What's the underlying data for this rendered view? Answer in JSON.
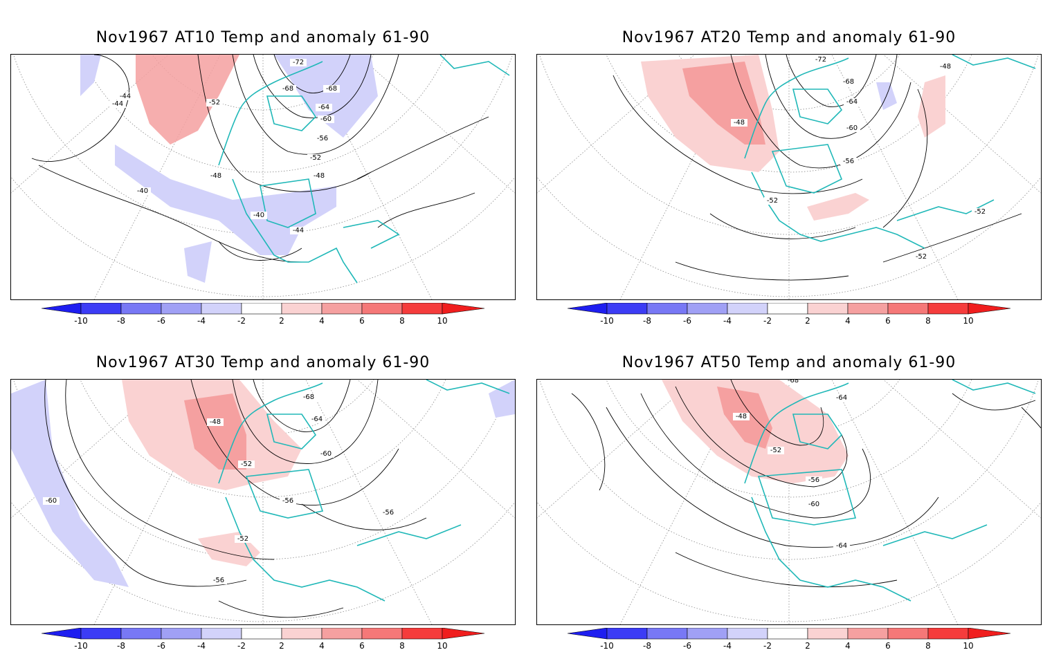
{
  "panels": [
    {
      "title": "Nov1967 AT10 Temp and anomaly 61-90",
      "contour_labels": [
        "-72",
        "-68",
        "-68",
        "-64",
        "-60",
        "-56",
        "-52",
        "-52",
        "-48",
        "-48",
        "-44",
        "-44",
        "-40",
        "-40",
        "-44"
      ]
    },
    {
      "title": "Nov1967 AT20 Temp and anomaly 61-90",
      "contour_labels": [
        "-72",
        "-68",
        "-64",
        "-60",
        "-56",
        "-52",
        "-48",
        "-48",
        "-52",
        "-52"
      ]
    },
    {
      "title": "Nov1967 AT30 Temp and anomaly 61-90",
      "contour_labels": [
        "-68",
        "-64",
        "-60",
        "-56",
        "-52",
        "-48",
        "-52",
        "-56",
        "-56",
        "-60"
      ]
    },
    {
      "title": "Nov1967 AT50 Temp and anomaly 61-90",
      "contour_labels": [
        "-68",
        "-64",
        "-48",
        "-52",
        "-56",
        "-60",
        "-64"
      ]
    }
  ],
  "colorbar": {
    "tick_labels": [
      "-10",
      "-8",
      "-6",
      "-4",
      "-2",
      "2",
      "4",
      "6",
      "8",
      "10"
    ],
    "colors": [
      "#1e1ef0",
      "#3c3cf5",
      "#7878f5",
      "#a0a0f5",
      "#d2d2fa",
      "#ffffff",
      "#fad2d2",
      "#f5a0a0",
      "#f57878",
      "#f53c3c",
      "#f01e1e"
    ]
  },
  "colors": {
    "coastline": "#20b8b8",
    "contour": "#000000",
    "grid": "#888888"
  }
}
